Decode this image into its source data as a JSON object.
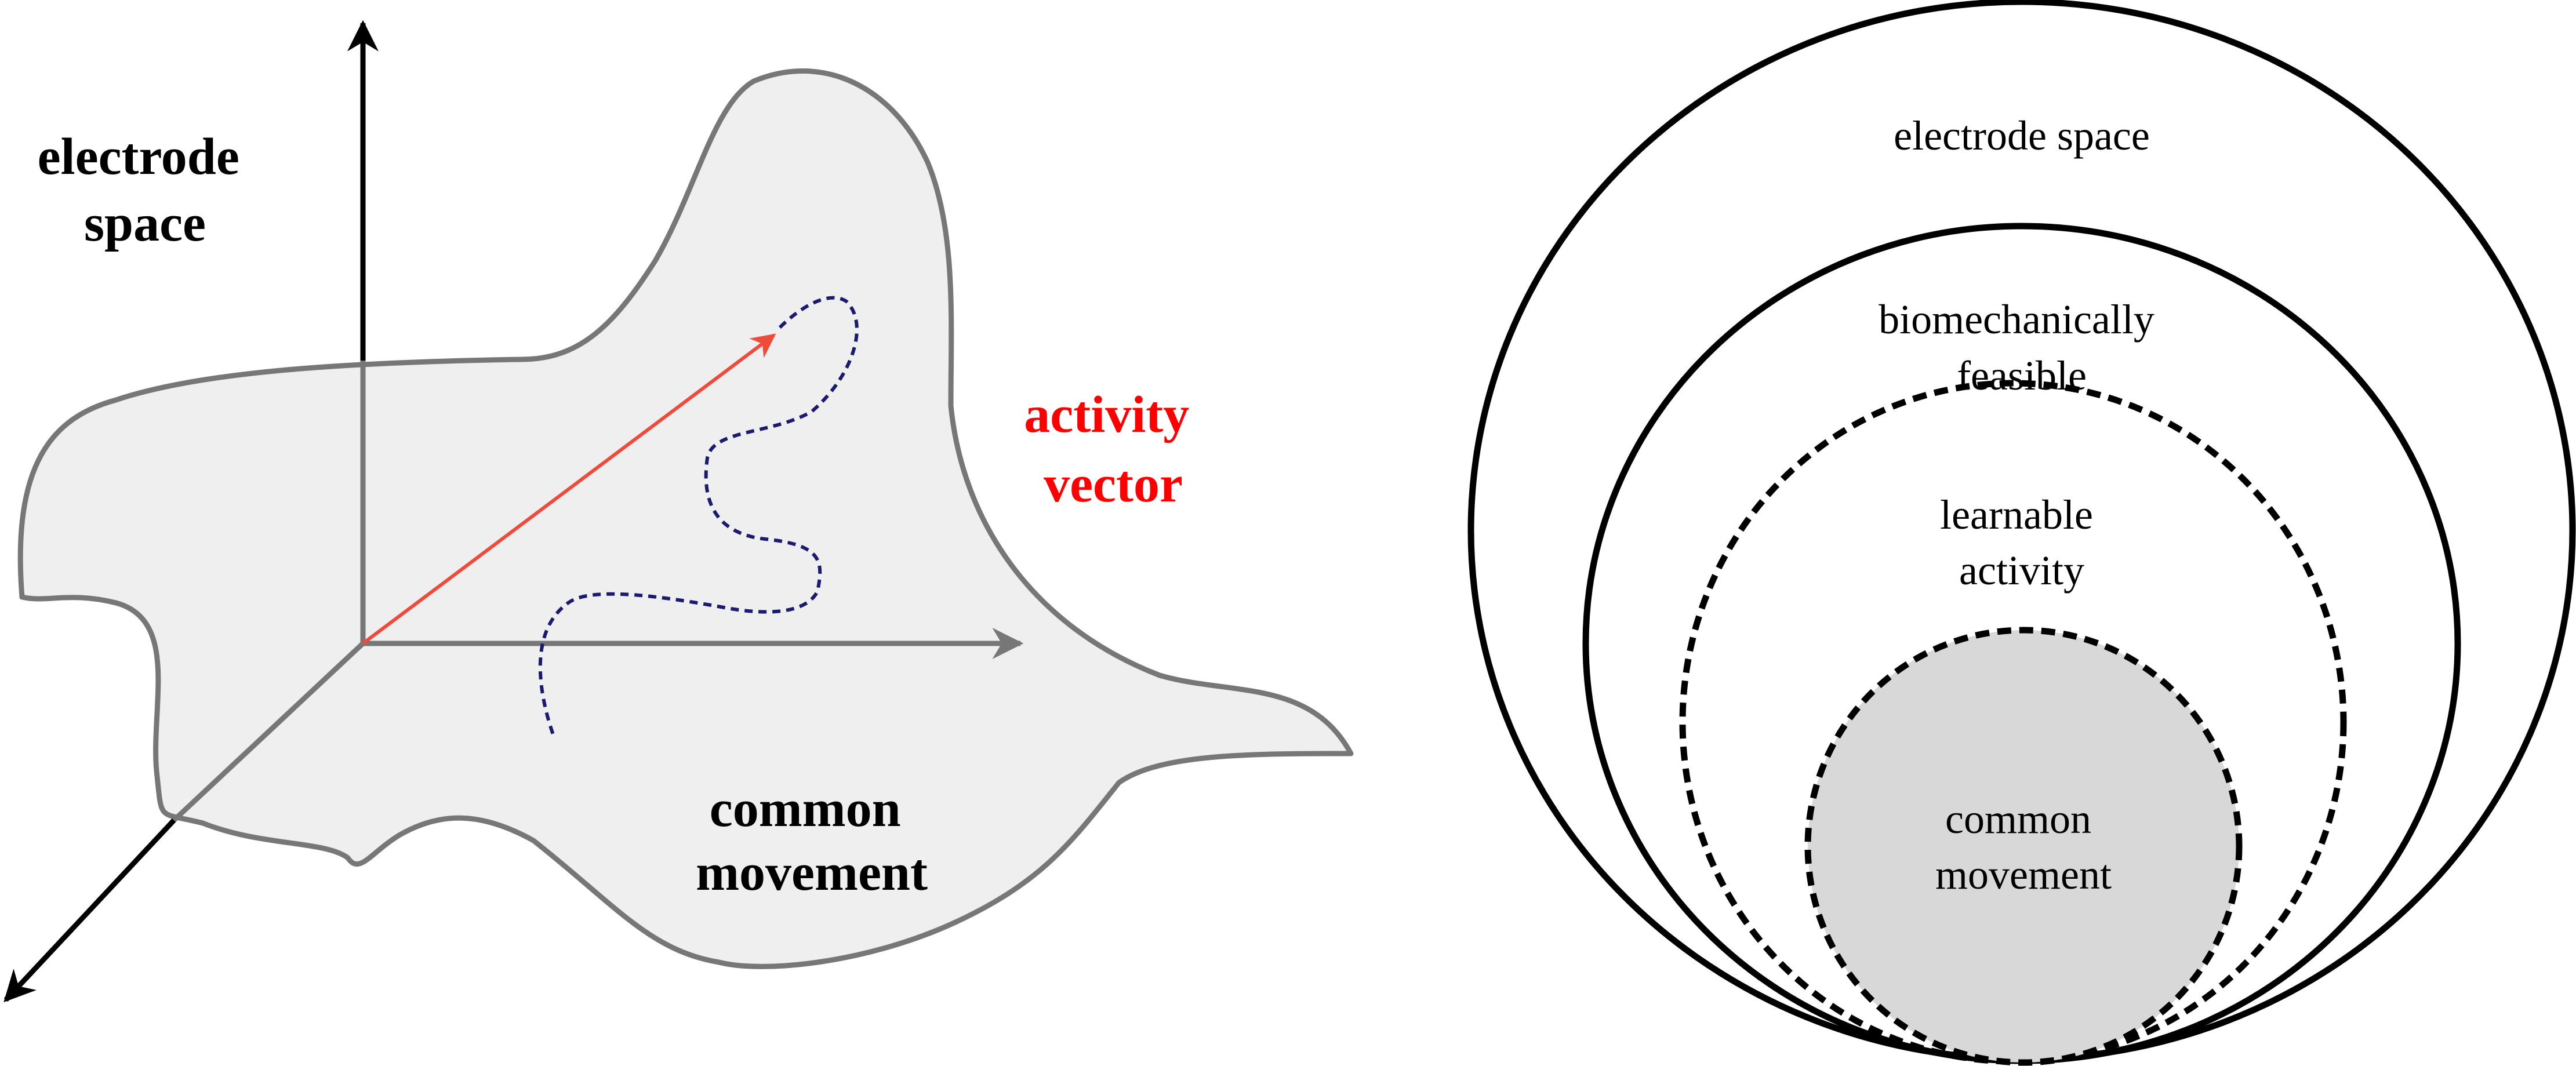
{
  "left_panel": {
    "electrode_space_label": [
      "electrode",
      "space"
    ],
    "activity_vector_label": [
      "activity",
      "vector"
    ],
    "common_movement_label": [
      "common",
      "movement"
    ]
  },
  "right_panel": {
    "electrode_space_label": [
      "electrode space"
    ],
    "biomechanically_feasible_label": [
      "biomechanically",
      "feasible"
    ],
    "learnable_activity_label": [
      "learnable",
      "activity"
    ],
    "common_movement_label": [
      "common",
      "movement"
    ]
  },
  "colors": {
    "manifold_fill": "#efefef",
    "manifold_stroke": "#777777",
    "axis_dark": "#000000",
    "axis_gray": "#777777",
    "activity_vector": "#ee4b3b",
    "activity_label": "#ff0000",
    "trajectory": "#1a1a6e",
    "common_movement_fill": "#d8d8d8"
  }
}
